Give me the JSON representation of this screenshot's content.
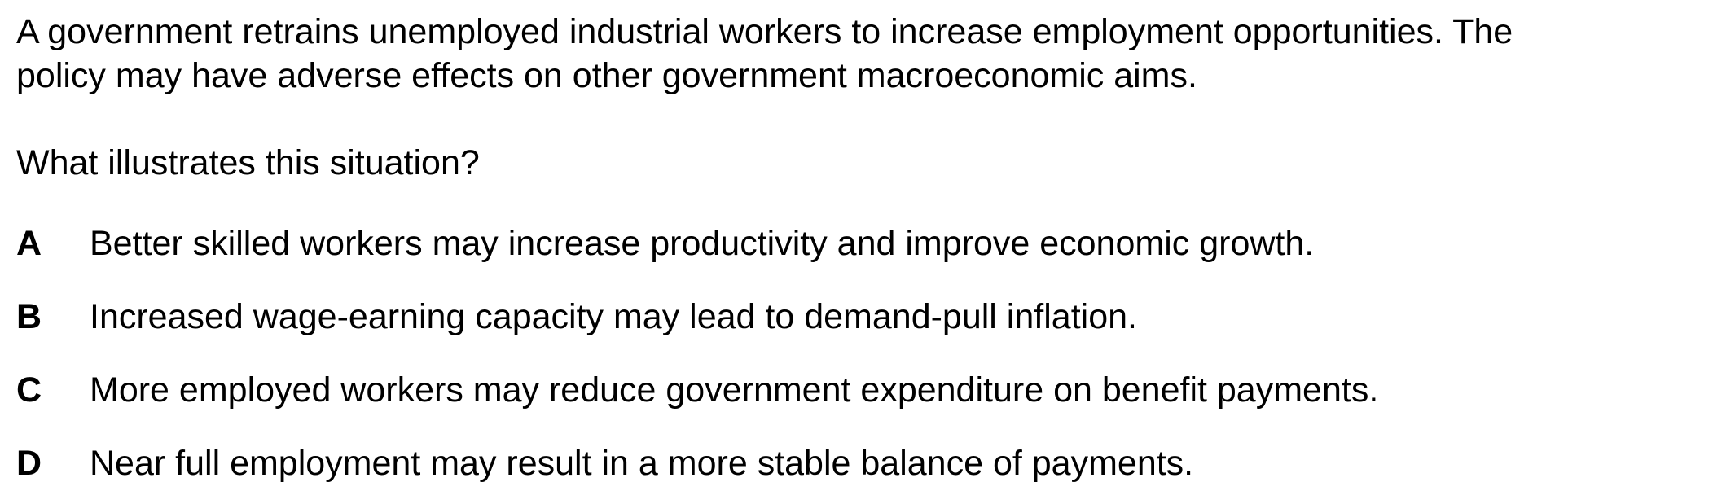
{
  "question": {
    "stem_line1": "A government retrains unemployed industrial workers to increase employment opportunities. The",
    "stem_line2": "policy may have adverse effects on other government macroeconomic aims.",
    "prompt": "What illustrates this situation?",
    "options": [
      {
        "letter": "A",
        "text": "Better skilled workers may increase productivity and improve economic growth."
      },
      {
        "letter": "B",
        "text": "Increased wage-earning capacity may lead to demand-pull inflation."
      },
      {
        "letter": "C",
        "text": "More employed workers may reduce government expenditure on benefit payments."
      },
      {
        "letter": "D",
        "text": "Near full employment may result in a more stable balance of payments."
      }
    ]
  }
}
